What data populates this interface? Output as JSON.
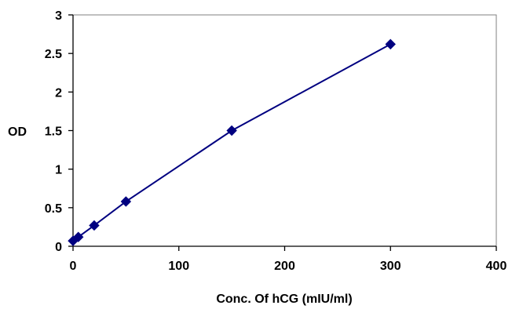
{
  "chart_data": {
    "type": "line",
    "xlabel": "Conc. Of hCG (mIU/ml)",
    "ylabel": "OD",
    "xlim": [
      0,
      400
    ],
    "ylim": [
      0,
      3
    ],
    "xticks": [
      "0",
      "100",
      "200",
      "300",
      "400"
    ],
    "yticks": [
      "0",
      "0.5",
      "1",
      "1.5",
      "2",
      "2.5",
      "3"
    ],
    "grid": false,
    "legend": "none",
    "series": [
      {
        "marker": "diamond",
        "color": "#000080",
        "x": [
          0,
          5,
          20,
          50,
          150,
          300
        ],
        "y": [
          0.07,
          0.12,
          0.27,
          0.58,
          1.5,
          2.62
        ]
      }
    ]
  }
}
